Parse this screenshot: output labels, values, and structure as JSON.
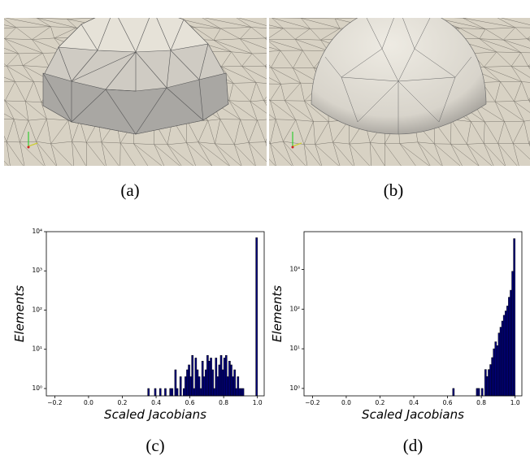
{
  "captions": [
    "(a)",
    "(b)",
    "(c)",
    "(d)"
  ],
  "chart_data": [
    {
      "type": "histogram",
      "xlabel": "Scaled Jacobians",
      "ylabel": "Elements",
      "color": "#000080",
      "edgecolor": "#000000",
      "log_y": true,
      "bins": [
        0.35,
        0.36,
        0.37,
        0.38,
        0.39,
        0.4,
        0.41,
        0.42,
        0.43,
        0.44,
        0.45,
        0.46,
        0.47,
        0.48,
        0.49,
        0.5,
        0.51,
        0.52,
        0.53,
        0.54,
        0.55,
        0.56,
        0.57,
        0.58,
        0.59,
        0.6,
        0.61,
        0.62,
        0.63,
        0.64,
        0.65,
        0.66,
        0.67,
        0.68,
        0.69,
        0.7,
        0.71,
        0.72,
        0.73,
        0.74,
        0.75,
        0.76,
        0.77,
        0.78,
        0.79,
        0.8,
        0.81,
        0.82,
        0.83,
        0.84,
        0.85,
        0.86,
        0.87,
        0.88,
        0.89,
        0.9,
        0.91,
        0.92,
        0.93,
        0.94,
        0.95,
        0.96,
        0.97,
        0.98,
        0.99,
        1.0
      ],
      "values": [
        1,
        0,
        0,
        0,
        1,
        0,
        0,
        1,
        0,
        0,
        1,
        0,
        0,
        1,
        1,
        0,
        3,
        1,
        0,
        2,
        0,
        1,
        2,
        3,
        4,
        2,
        7,
        1,
        6,
        3,
        2,
        1,
        5,
        2,
        3,
        7,
        5,
        6,
        3,
        1,
        6,
        2,
        4,
        7,
        3,
        6,
        7,
        2,
        5,
        4,
        2,
        3,
        1,
        2,
        1,
        1,
        1,
        0,
        0,
        0,
        0,
        0,
        0,
        0,
        7000
      ],
      "xlim": [
        -0.25,
        1.04
      ],
      "ylim": [
        0.65,
        10000
      ],
      "xticks": [
        {
          "value": -0.2,
          "label": "−0.2"
        },
        {
          "value": 0,
          "label": "0.0"
        },
        {
          "value": 0.2,
          "label": "0.2"
        },
        {
          "value": 0.4,
          "label": "0.4"
        },
        {
          "value": 0.6,
          "label": "0.6"
        },
        {
          "value": 0.8,
          "label": "0.8"
        },
        {
          "value": 1,
          "label": "1.0"
        }
      ],
      "yticks": [
        {
          "value": 1,
          "label": "10⁰"
        },
        {
          "value": 10,
          "label": "10¹"
        },
        {
          "value": 100,
          "label": "10²"
        },
        {
          "value": 1000,
          "label": "10³"
        },
        {
          "value": 10000,
          "label": "10⁴"
        }
      ]
    },
    {
      "type": "histogram",
      "xlabel": "Scaled Jacobians",
      "ylabel": "Elements",
      "color": "#000080",
      "edgecolor": "#000000",
      "log_y": true,
      "bins": [
        0.63,
        0.64,
        0.65,
        0.66,
        0.67,
        0.68,
        0.69,
        0.7,
        0.71,
        0.72,
        0.73,
        0.74,
        0.75,
        0.76,
        0.77,
        0.78,
        0.79,
        0.8,
        0.81,
        0.82,
        0.83,
        0.84,
        0.85,
        0.86,
        0.87,
        0.88,
        0.89,
        0.9,
        0.91,
        0.92,
        0.93,
        0.94,
        0.95,
        0.96,
        0.97,
        0.98,
        0.99,
        1.0
      ],
      "values": [
        1,
        0,
        0,
        0,
        0,
        0,
        0,
        0,
        0,
        0,
        0,
        0,
        0,
        0,
        1,
        1,
        0,
        1,
        0,
        3,
        2,
        3,
        4,
        6,
        10,
        15,
        12,
        25,
        35,
        50,
        70,
        90,
        120,
        200,
        300,
        900,
        6000
      ],
      "xlim": [
        -0.25,
        1.04
      ],
      "ylim": [
        0.65,
        9000
      ],
      "xticks": [
        {
          "value": -0.2,
          "label": "−0.2"
        },
        {
          "value": 0,
          "label": "0.0"
        },
        {
          "value": 0.2,
          "label": "0.2"
        },
        {
          "value": 0.4,
          "label": "0.4"
        },
        {
          "value": 0.6,
          "label": "0.6"
        },
        {
          "value": 0.8,
          "label": "0.8"
        },
        {
          "value": 1,
          "label": "1.0"
        }
      ],
      "yticks": [
        {
          "value": 1,
          "label": "10⁰"
        },
        {
          "value": 10,
          "label": "10¹"
        },
        {
          "value": 100,
          "label": "10²"
        },
        {
          "value": 1000,
          "label": "10³"
        }
      ]
    }
  ]
}
